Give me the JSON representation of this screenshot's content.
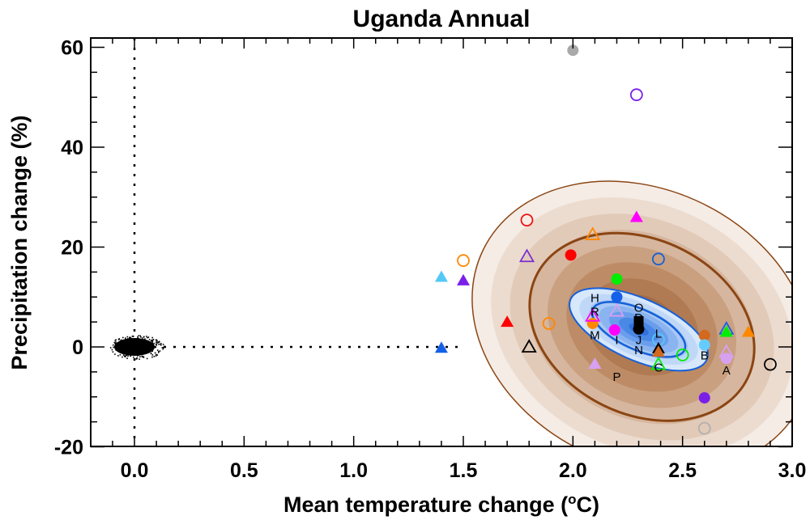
{
  "chart_data": {
    "type": "scatter",
    "title": "Uganda Annual",
    "xlabel": "Mean temperature change (",
    "xlabel_sup": "o",
    "xlabel_end": "C)",
    "ylabel": "Precipitation change (%)",
    "xlim": [
      -0.2,
      3.0
    ],
    "ylim": [
      -20,
      62
    ],
    "xticks": [
      0.0,
      0.5,
      1.0,
      1.5,
      2.0,
      2.5,
      3.0
    ],
    "xtick_labels": [
      "0.0",
      "0.5",
      "1.0",
      "1.5",
      "2.0",
      "2.5",
      "3.0"
    ],
    "yticks": [
      -20,
      0,
      20,
      40,
      60
    ],
    "ytick_labels": [
      "-20",
      "0",
      "20",
      "40",
      "60"
    ],
    "reference_lines": {
      "x": 0.0,
      "y": 0.0,
      "style": "dotted"
    },
    "grid": false,
    "legend": "none",
    "natural_variability_cloud": {
      "center": [
        0.0,
        0.0
      ],
      "spread_x": 0.1,
      "spread_y": 2.5,
      "color": "#000000"
    },
    "density_ellipses": [
      {
        "name": "perturbed-physics-ensemble",
        "center": [
          2.3,
          4.0
        ],
        "color_scheme": "brown",
        "outer_color": "#8b4513",
        "levels": 9
      },
      {
        "name": "multi-model-ensemble",
        "center": [
          2.3,
          3.5
        ],
        "color_scheme": "blue",
        "outer_color": "#1560d8",
        "levels": 7
      }
    ],
    "points": [
      {
        "x": 2.0,
        "y": 59.4,
        "marker": "circle",
        "filled": true,
        "color": "#a9a9a9"
      },
      {
        "x": 2.29,
        "y": 50.5,
        "marker": "circle",
        "filled": false,
        "color": "#7a1fe8"
      },
      {
        "x": 1.79,
        "y": 25.4,
        "marker": "circle",
        "filled": false,
        "color": "#ee1111"
      },
      {
        "x": 2.29,
        "y": 26.0,
        "marker": "triangle",
        "filled": true,
        "color": "#ff00ff"
      },
      {
        "x": 2.09,
        "y": 22.5,
        "marker": "triangle",
        "filled": false,
        "color": "#ff8800"
      },
      {
        "x": 1.79,
        "y": 18.1,
        "marker": "triangle",
        "filled": false,
        "color": "#7a2fd0"
      },
      {
        "x": 1.99,
        "y": 18.4,
        "marker": "circle",
        "filled": true,
        "color": "#ff0000"
      },
      {
        "x": 2.39,
        "y": 17.6,
        "marker": "circle",
        "filled": false,
        "color": "#1560d8"
      },
      {
        "x": 1.5,
        "y": 17.3,
        "marker": "circle",
        "filled": false,
        "color": "#ff8800"
      },
      {
        "x": 1.4,
        "y": 14.0,
        "marker": "triangle",
        "filled": true,
        "color": "#55c8f5"
      },
      {
        "x": 1.5,
        "y": 13.3,
        "marker": "triangle",
        "filled": true,
        "color": "#7a1fe8"
      },
      {
        "x": 2.2,
        "y": 13.6,
        "marker": "circle",
        "filled": true,
        "color": "#00ee00"
      },
      {
        "x": 2.2,
        "y": 10.0,
        "marker": "circle",
        "filled": true,
        "color": "#1560e8"
      },
      {
        "x": 2.2,
        "y": 7.2,
        "marker": "triangle",
        "filled": false,
        "color": "#d8a0f0"
      },
      {
        "x": 1.7,
        "y": 5.0,
        "marker": "triangle",
        "filled": true,
        "color": "#ff0000"
      },
      {
        "x": 1.89,
        "y": 4.7,
        "marker": "circle",
        "filled": false,
        "color": "#ff8800"
      },
      {
        "x": 2.09,
        "y": 4.7,
        "marker": "circle",
        "filled": true,
        "color": "#ff8800"
      },
      {
        "x": 2.09,
        "y": 6.2,
        "marker": "triangle",
        "filled": false,
        "color": "#ff00ff"
      },
      {
        "x": 2.19,
        "y": 3.4,
        "marker": "circle",
        "filled": true,
        "color": "#ff00ff"
      },
      {
        "x": 2.3,
        "y": 3.6,
        "marker": "circle",
        "filled": true,
        "color": "#000000"
      },
      {
        "x": 2.3,
        "y": 5.2,
        "marker": "square",
        "filled": true,
        "color": "#000000"
      },
      {
        "x": 2.39,
        "y": 1.5,
        "marker": "circle",
        "filled": false,
        "color": "#55c8f5"
      },
      {
        "x": 2.39,
        "y": -0.3,
        "marker": "triangle",
        "filled": true,
        "color": "#000000"
      },
      {
        "x": 2.39,
        "y": -1.0,
        "marker": "triangle",
        "filled": true,
        "color": "#d2691e"
      },
      {
        "x": 2.39,
        "y": -3.5,
        "marker": "triangle",
        "filled": false,
        "color": "#00ee00"
      },
      {
        "x": 2.5,
        "y": -1.6,
        "marker": "circle",
        "filled": false,
        "color": "#00ee00"
      },
      {
        "x": 1.8,
        "y": 0.0,
        "marker": "triangle",
        "filled": false,
        "color": "#000000"
      },
      {
        "x": 1.4,
        "y": -0.2,
        "marker": "triangle",
        "filled": true,
        "color": "#1560e8"
      },
      {
        "x": 2.1,
        "y": -3.4,
        "marker": "triangle",
        "filled": true,
        "color": "#d8a0f0"
      },
      {
        "x": 2.6,
        "y": 2.3,
        "marker": "circle",
        "filled": true,
        "color": "#d2691e"
      },
      {
        "x": 2.6,
        "y": 0.4,
        "marker": "circle",
        "filled": true,
        "color": "#66ccff"
      },
      {
        "x": 2.7,
        "y": 3.6,
        "marker": "triangle",
        "filled": false,
        "color": "#1560e8"
      },
      {
        "x": 2.7,
        "y": 3.0,
        "marker": "triangle",
        "filled": true,
        "color": "#00ee00"
      },
      {
        "x": 2.8,
        "y": 3.0,
        "marker": "triangle",
        "filled": true,
        "color": "#ff8800"
      },
      {
        "x": 2.7,
        "y": -1.0,
        "marker": "triangle",
        "filled": false,
        "color": "#d8a0f0"
      },
      {
        "x": 2.7,
        "y": -2.3,
        "marker": "circle",
        "filled": true,
        "color": "#d8a0f0"
      },
      {
        "x": 2.9,
        "y": -3.5,
        "marker": "circle",
        "filled": false,
        "color": "#000000"
      },
      {
        "x": 2.6,
        "y": -10.2,
        "marker": "circle",
        "filled": true,
        "color": "#7a1fe8"
      },
      {
        "x": 2.6,
        "y": -16.3,
        "marker": "circle",
        "filled": false,
        "color": "#b0b0b0"
      }
    ],
    "letter_labels": [
      {
        "text": "H",
        "x": 2.1,
        "y": 10.0
      },
      {
        "text": "R",
        "x": 2.1,
        "y": 7.2
      },
      {
        "text": "M",
        "x": 2.1,
        "y": 2.5
      },
      {
        "text": "I",
        "x": 2.2,
        "y": 1.5
      },
      {
        "text": "O",
        "x": 2.3,
        "y": 8.0
      },
      {
        "text": "D",
        "x": 2.3,
        "y": 6.0
      },
      {
        "text": "J",
        "x": 2.3,
        "y": 1.5
      },
      {
        "text": "N",
        "x": 2.3,
        "y": -0.5
      },
      {
        "text": "L",
        "x": 2.39,
        "y": 2.8
      },
      {
        "text": "C",
        "x": 2.39,
        "y": -4.0
      },
      {
        "text": "B",
        "x": 2.6,
        "y": -1.5
      },
      {
        "text": "A",
        "x": 2.7,
        "y": -4.5
      },
      {
        "text": "P",
        "x": 2.2,
        "y": -5.8
      }
    ]
  }
}
